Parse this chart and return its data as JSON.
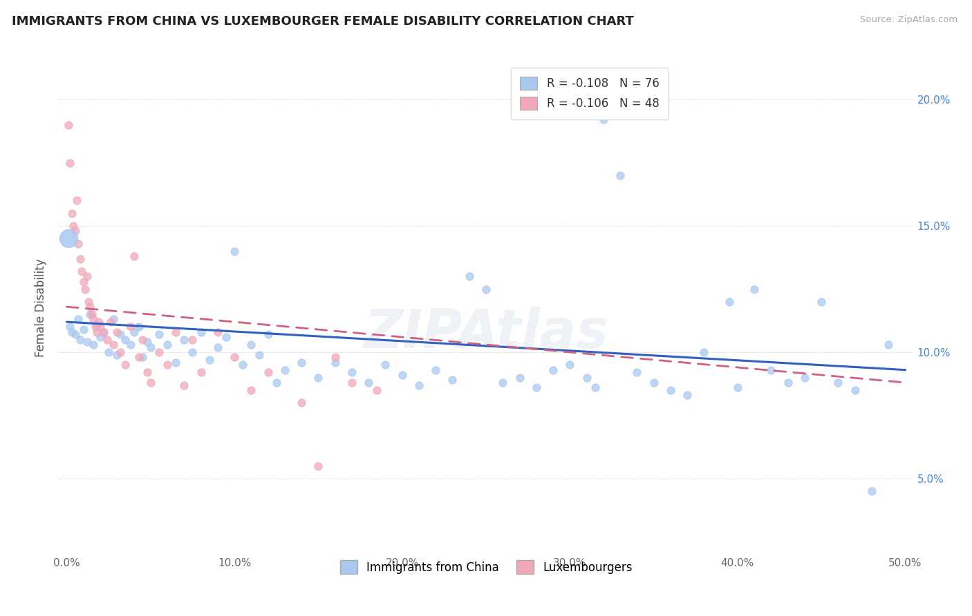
{
  "title": "IMMIGRANTS FROM CHINA VS LUXEMBOURGER FEMALE DISABILITY CORRELATION CHART",
  "source": "Source: ZipAtlas.com",
  "ylabel": "Female Disability",
  "legend_labels": [
    "Immigrants from China",
    "Luxembourgers"
  ],
  "xlim": [
    0.0,
    0.5
  ],
  "ylim": [
    0.02,
    0.215
  ],
  "xticks": [
    0.0,
    0.1,
    0.2,
    0.3,
    0.4,
    0.5
  ],
  "yticks": [
    0.05,
    0.1,
    0.15,
    0.2
  ],
  "china_color": "#a8c8f0",
  "lux_color": "#f0a8b8",
  "china_trend_color": "#3060c0",
  "lux_trend_color": "#d06080",
  "background_color": "#ffffff",
  "china_R": -0.108,
  "china_N": 76,
  "lux_R": -0.106,
  "lux_N": 48,
  "china_trend_start_y": 0.112,
  "china_trend_end_y": 0.093,
  "lux_trend_start_y": 0.118,
  "lux_trend_end_y": 0.088,
  "china_scatter": [
    [
      0.002,
      0.11
    ],
    [
      0.003,
      0.108
    ],
    [
      0.005,
      0.107
    ],
    [
      0.007,
      0.113
    ],
    [
      0.008,
      0.105
    ],
    [
      0.01,
      0.109
    ],
    [
      0.012,
      0.104
    ],
    [
      0.014,
      0.115
    ],
    [
      0.016,
      0.103
    ],
    [
      0.018,
      0.111
    ],
    [
      0.02,
      0.106
    ],
    [
      0.022,
      0.108
    ],
    [
      0.025,
      0.1
    ],
    [
      0.028,
      0.113
    ],
    [
      0.03,
      0.099
    ],
    [
      0.032,
      0.107
    ],
    [
      0.035,
      0.105
    ],
    [
      0.038,
      0.103
    ],
    [
      0.04,
      0.108
    ],
    [
      0.043,
      0.11
    ],
    [
      0.045,
      0.098
    ],
    [
      0.048,
      0.104
    ],
    [
      0.05,
      0.102
    ],
    [
      0.055,
      0.107
    ],
    [
      0.06,
      0.103
    ],
    [
      0.065,
      0.096
    ],
    [
      0.07,
      0.105
    ],
    [
      0.075,
      0.1
    ],
    [
      0.08,
      0.108
    ],
    [
      0.085,
      0.097
    ],
    [
      0.09,
      0.102
    ],
    [
      0.095,
      0.106
    ],
    [
      0.1,
      0.14
    ],
    [
      0.105,
      0.095
    ],
    [
      0.11,
      0.103
    ],
    [
      0.115,
      0.099
    ],
    [
      0.12,
      0.107
    ],
    [
      0.125,
      0.088
    ],
    [
      0.13,
      0.093
    ],
    [
      0.14,
      0.096
    ],
    [
      0.15,
      0.09
    ],
    [
      0.16,
      0.096
    ],
    [
      0.17,
      0.092
    ],
    [
      0.18,
      0.088
    ],
    [
      0.19,
      0.095
    ],
    [
      0.2,
      0.091
    ],
    [
      0.21,
      0.087
    ],
    [
      0.22,
      0.093
    ],
    [
      0.23,
      0.089
    ],
    [
      0.24,
      0.13
    ],
    [
      0.25,
      0.125
    ],
    [
      0.26,
      0.088
    ],
    [
      0.27,
      0.09
    ],
    [
      0.28,
      0.086
    ],
    [
      0.29,
      0.093
    ],
    [
      0.3,
      0.095
    ],
    [
      0.31,
      0.09
    ],
    [
      0.315,
      0.086
    ],
    [
      0.32,
      0.192
    ],
    [
      0.33,
      0.17
    ],
    [
      0.34,
      0.092
    ],
    [
      0.35,
      0.088
    ],
    [
      0.36,
      0.085
    ],
    [
      0.37,
      0.083
    ],
    [
      0.38,
      0.1
    ],
    [
      0.395,
      0.12
    ],
    [
      0.4,
      0.086
    ],
    [
      0.41,
      0.125
    ],
    [
      0.42,
      0.093
    ],
    [
      0.43,
      0.088
    ],
    [
      0.44,
      0.09
    ],
    [
      0.45,
      0.12
    ],
    [
      0.46,
      0.088
    ],
    [
      0.47,
      0.085
    ],
    [
      0.48,
      0.045
    ],
    [
      0.49,
      0.103
    ]
  ],
  "lux_scatter": [
    [
      0.001,
      0.19
    ],
    [
      0.002,
      0.175
    ],
    [
      0.003,
      0.155
    ],
    [
      0.004,
      0.15
    ],
    [
      0.005,
      0.148
    ],
    [
      0.006,
      0.16
    ],
    [
      0.007,
      0.143
    ],
    [
      0.008,
      0.137
    ],
    [
      0.009,
      0.132
    ],
    [
      0.01,
      0.128
    ],
    [
      0.011,
      0.125
    ],
    [
      0.012,
      0.13
    ],
    [
      0.013,
      0.12
    ],
    [
      0.014,
      0.118
    ],
    [
      0.015,
      0.115
    ],
    [
      0.016,
      0.113
    ],
    [
      0.017,
      0.11
    ],
    [
      0.018,
      0.108
    ],
    [
      0.019,
      0.112
    ],
    [
      0.02,
      0.11
    ],
    [
      0.022,
      0.108
    ],
    [
      0.024,
      0.105
    ],
    [
      0.026,
      0.112
    ],
    [
      0.028,
      0.103
    ],
    [
      0.03,
      0.108
    ],
    [
      0.032,
      0.1
    ],
    [
      0.035,
      0.095
    ],
    [
      0.038,
      0.11
    ],
    [
      0.04,
      0.138
    ],
    [
      0.043,
      0.098
    ],
    [
      0.045,
      0.105
    ],
    [
      0.048,
      0.092
    ],
    [
      0.05,
      0.088
    ],
    [
      0.055,
      0.1
    ],
    [
      0.06,
      0.095
    ],
    [
      0.065,
      0.108
    ],
    [
      0.07,
      0.087
    ],
    [
      0.075,
      0.105
    ],
    [
      0.08,
      0.092
    ],
    [
      0.09,
      0.108
    ],
    [
      0.1,
      0.098
    ],
    [
      0.11,
      0.085
    ],
    [
      0.12,
      0.092
    ],
    [
      0.14,
      0.08
    ],
    [
      0.15,
      0.055
    ],
    [
      0.16,
      0.098
    ],
    [
      0.17,
      0.088
    ],
    [
      0.185,
      0.085
    ]
  ],
  "china_large_dot": [
    0.001,
    0.145
  ],
  "china_large_dot_size": 350
}
